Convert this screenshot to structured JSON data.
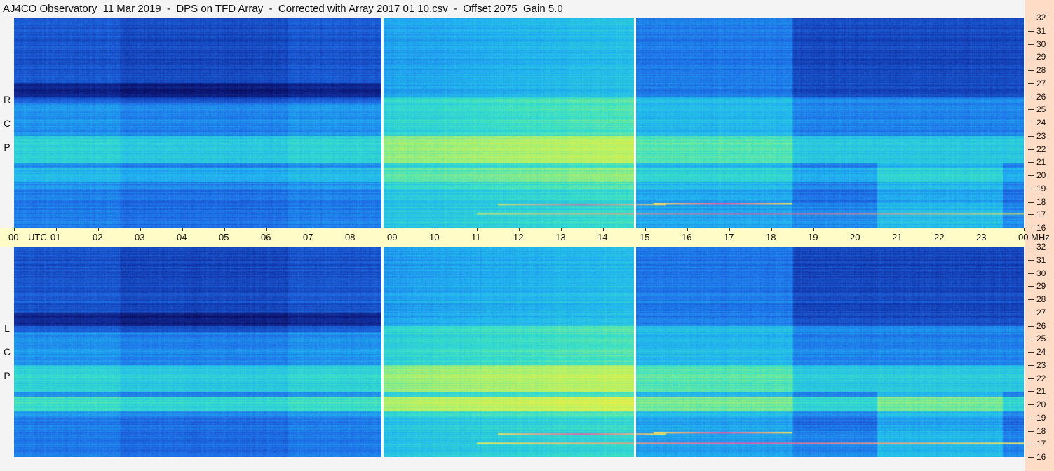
{
  "title": "AJ4CO Observatory  11 Mar 2019  -  DPS on TFD Array  -  Corrected with Array 2017 01 10.csv  -  Offset 2075  Gain 5.0",
  "panels": [
    {
      "id": "rcp",
      "label_letters": [
        "R",
        "C",
        "P"
      ]
    },
    {
      "id": "lcp",
      "label_letters": [
        "L",
        "C",
        "P"
      ]
    }
  ],
  "colors": {
    "background": "#f4f4f4",
    "time_axis_bg": "#fffcc8",
    "freq_axis_bg": "#ffdcc6",
    "colormap": [
      "#0a0a5a",
      "#1234a8",
      "#1f6ee8",
      "#20b4f0",
      "#38e0c8",
      "#a8f070",
      "#f0f040",
      "#ff8040",
      "#ff20a0"
    ]
  },
  "chart_data": {
    "type": "heatmap",
    "description_free": true,
    "x_axis": {
      "unit_label": "UTC",
      "end_unit_label": "MHz",
      "range_hours": [
        0,
        24
      ],
      "tick_labels": [
        "00",
        "01",
        "02",
        "03",
        "04",
        "05",
        "06",
        "07",
        "08",
        "09",
        "10",
        "11",
        "12",
        "13",
        "14",
        "15",
        "16",
        "17",
        "18",
        "19",
        "20",
        "21",
        "22",
        "23",
        "00"
      ]
    },
    "y_axis": {
      "unit": "MHz",
      "range": [
        16,
        32
      ],
      "tick_labels": [
        "32",
        "31",
        "30",
        "29",
        "28",
        "27",
        "26",
        "25",
        "24",
        "23",
        "22",
        "21",
        "20",
        "19",
        "18",
        "17",
        "16"
      ]
    },
    "data_gaps_utc_hours": [
      8.75,
      14.75
    ],
    "series": [
      {
        "name": "RCP"
      },
      {
        "name": "LCP"
      }
    ],
    "colorscale": "jet"
  }
}
